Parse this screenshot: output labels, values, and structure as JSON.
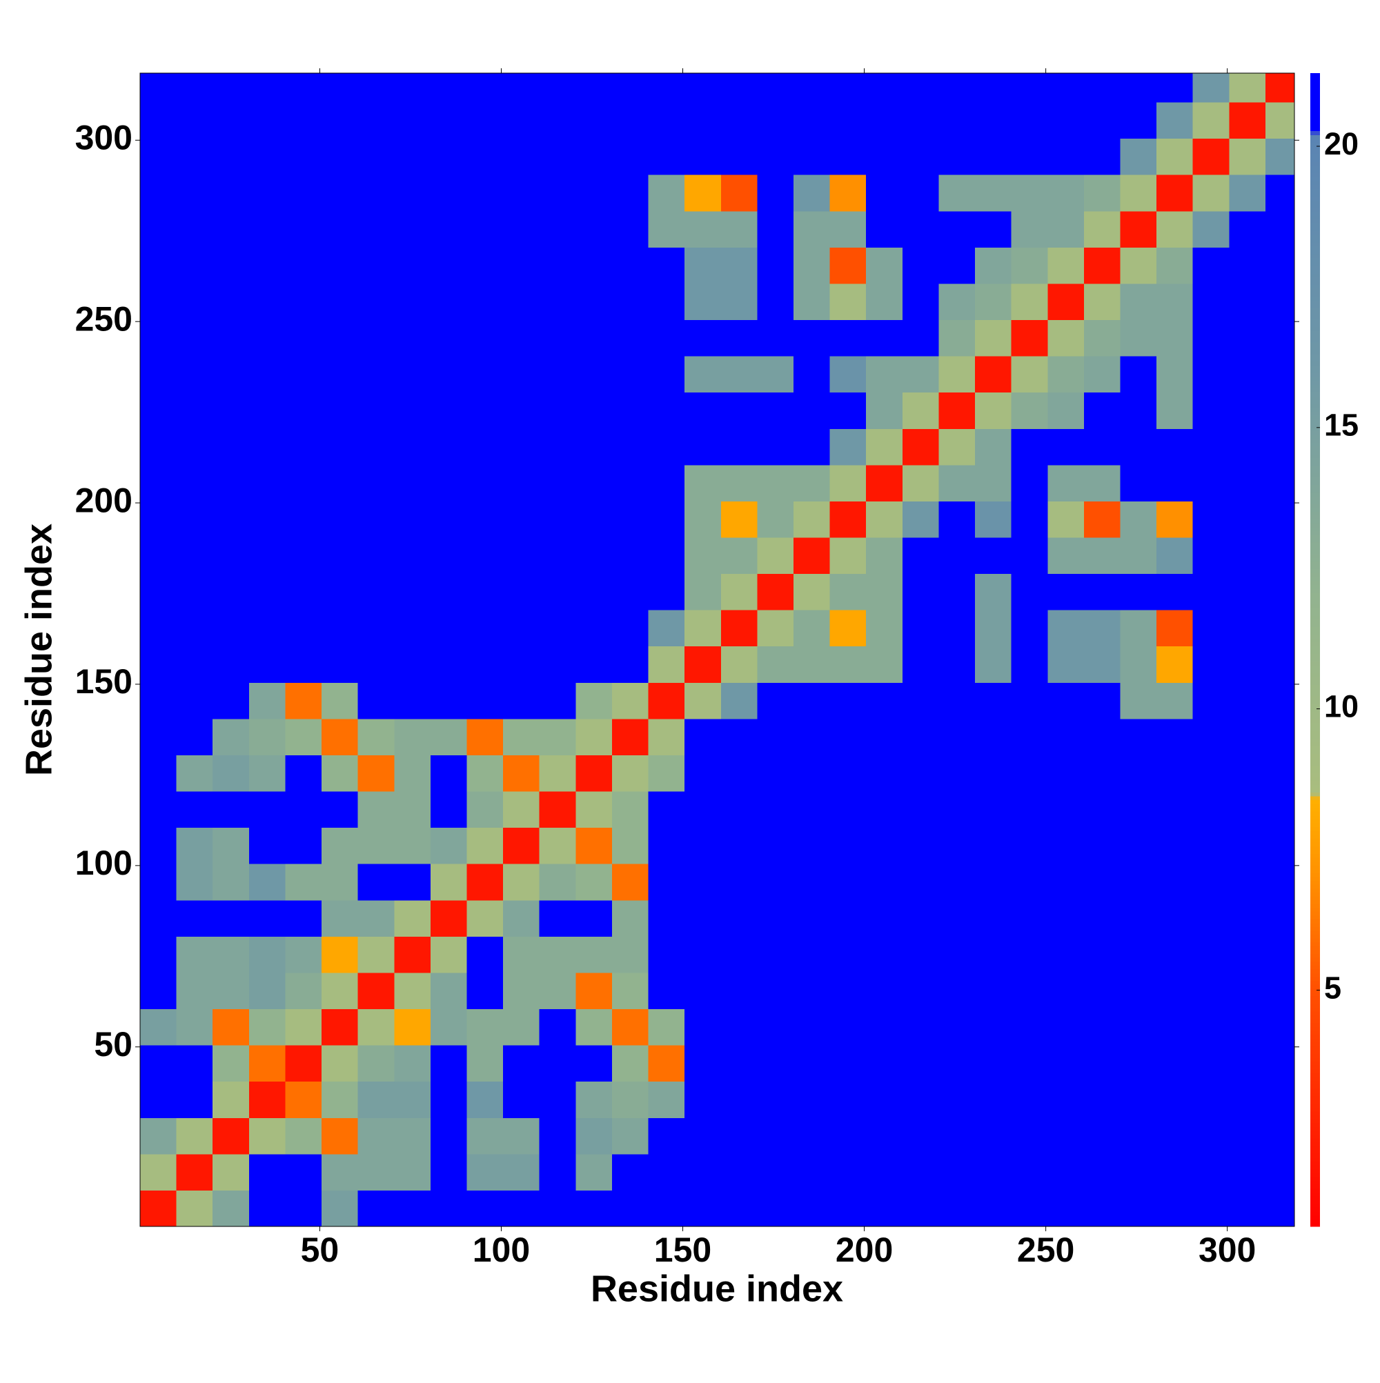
{
  "chart_data": {
    "type": "heatmap",
    "xlabel": "Residue index",
    "ylabel": "Residue index",
    "xlim": [
      0.5,
      318.5
    ],
    "ylim": [
      0.5,
      318.5
    ],
    "xticks": [
      50,
      100,
      150,
      200,
      250,
      300
    ],
    "yticks": [
      50,
      100,
      150,
      200,
      250,
      300
    ],
    "xbins": [
      0.5,
      10.5,
      20.5,
      30.5,
      40.5,
      50.5,
      60.5,
      70.5,
      80.5,
      90.5,
      100.5,
      110.5,
      120.5,
      130.5,
      140.5,
      150.5,
      160.5,
      170.5,
      180.5,
      190.5,
      200.5,
      210.5,
      220.5,
      230.5,
      240.5,
      250.5,
      260.5,
      270.5,
      280.5,
      290.5,
      300.5,
      310.5,
      318.5
    ],
    "ybins": [
      0.5,
      10.5,
      20.5,
      30.5,
      40.5,
      50.5,
      60.5,
      70.5,
      80.5,
      90.5,
      100.5,
      110.5,
      120.5,
      130.5,
      140.5,
      150.5,
      160.5,
      170.5,
      180.5,
      190.5,
      200.5,
      210.5,
      220.5,
      230.5,
      240.5,
      250.5,
      260.5,
      270.5,
      280.5,
      290.5,
      300.5,
      310.5,
      318.5
    ],
    "zlim": [
      0.8,
      21.3
    ],
    "zticks": [
      5,
      10,
      15,
      20
    ],
    "colorscale": [
      [
        0.8,
        "#ff0000"
      ],
      [
        5,
        "#ff5000"
      ],
      [
        7,
        "#ff9000"
      ],
      [
        8.4,
        "#ffb000"
      ],
      [
        8.5,
        "#a9bd7e"
      ],
      [
        12,
        "#92b38f"
      ],
      [
        16,
        "#6f98a6"
      ],
      [
        20.2,
        "#5a84b3"
      ],
      [
        20.3,
        "#0000ff"
      ],
      [
        21.3,
        "#0000ff"
      ]
    ],
    "z": [
      [
        2,
        9,
        14,
        21,
        21,
        15,
        21,
        21,
        21,
        21,
        21,
        21,
        21,
        21,
        21,
        21,
        21,
        21,
        21,
        21,
        21,
        21,
        21,
        21,
        21,
        21,
        21,
        21,
        21,
        21,
        21,
        21
      ],
      [
        9,
        2,
        9,
        21,
        21,
        14,
        14,
        14,
        21,
        15,
        15,
        21,
        14,
        21,
        21,
        21,
        21,
        21,
        21,
        21,
        21,
        21,
        21,
        21,
        21,
        21,
        21,
        21,
        21,
        21,
        21,
        21
      ],
      [
        14,
        9,
        2,
        9,
        12,
        6,
        14,
        14,
        21,
        14,
        14,
        21,
        15,
        14,
        21,
        21,
        21,
        21,
        21,
        21,
        21,
        21,
        21,
        21,
        21,
        21,
        21,
        21,
        21,
        21,
        21,
        21
      ],
      [
        21,
        21,
        9,
        2,
        6,
        12,
        15,
        15,
        21,
        16,
        21,
        21,
        14,
        13,
        14,
        21,
        21,
        21,
        21,
        21,
        21,
        21,
        21,
        21,
        21,
        21,
        21,
        21,
        21,
        21,
        21,
        21
      ],
      [
        21,
        21,
        12,
        6,
        2,
        9,
        13,
        14,
        21,
        13,
        21,
        21,
        21,
        12,
        6,
        21,
        21,
        21,
        21,
        21,
        21,
        21,
        21,
        21,
        21,
        21,
        21,
        21,
        21,
        21,
        21,
        21
      ],
      [
        15,
        14,
        6,
        12,
        9,
        2,
        9,
        8,
        14,
        13,
        13,
        21,
        12,
        6,
        12,
        21,
        21,
        21,
        21,
        21,
        21,
        21,
        21,
        21,
        21,
        21,
        21,
        21,
        21,
        21,
        21,
        21
      ],
      [
        21,
        14,
        14,
        15,
        13,
        9,
        2,
        9,
        14,
        21,
        13,
        13,
        6,
        12,
        21,
        21,
        21,
        21,
        21,
        21,
        21,
        21,
        21,
        21,
        21,
        21,
        21,
        21,
        21,
        21,
        21,
        21
      ],
      [
        21,
        14,
        14,
        15,
        14,
        8,
        9,
        2,
        9,
        21,
        13,
        13,
        13,
        13,
        21,
        21,
        21,
        21,
        21,
        21,
        21,
        21,
        21,
        21,
        21,
        21,
        21,
        21,
        21,
        21,
        21,
        21
      ],
      [
        21,
        21,
        21,
        21,
        21,
        14,
        14,
        9,
        2,
        9,
        14,
        21,
        21,
        13,
        21,
        21,
        21,
        21,
        21,
        21,
        21,
        21,
        21,
        21,
        21,
        21,
        21,
        21,
        21,
        21,
        21,
        21
      ],
      [
        21,
        15,
        14,
        16,
        13,
        13,
        21,
        21,
        9,
        2,
        9,
        13,
        12,
        6,
        21,
        21,
        21,
        21,
        21,
        21,
        21,
        21,
        21,
        21,
        21,
        21,
        21,
        21,
        21,
        21,
        21,
        21
      ],
      [
        21,
        15,
        14,
        21,
        21,
        13,
        13,
        13,
        14,
        9,
        2,
        9,
        6,
        12,
        21,
        21,
        21,
        21,
        21,
        21,
        21,
        21,
        21,
        21,
        21,
        21,
        21,
        21,
        21,
        21,
        21,
        21
      ],
      [
        21,
        21,
        21,
        21,
        21,
        21,
        13,
        13,
        21,
        13,
        9,
        2,
        9,
        12,
        21,
        21,
        21,
        21,
        21,
        21,
        21,
        21,
        21,
        21,
        21,
        21,
        21,
        21,
        21,
        21,
        21,
        21
      ],
      [
        21,
        14,
        15,
        14,
        21,
        12,
        6,
        13,
        21,
        12,
        6,
        9,
        2,
        9,
        12,
        21,
        21,
        21,
        21,
        21,
        21,
        21,
        21,
        21,
        21,
        21,
        21,
        21,
        21,
        21,
        21,
        21
      ],
      [
        21,
        21,
        14,
        13,
        12,
        6,
        12,
        13,
        13,
        6,
        12,
        12,
        9,
        2,
        9,
        21,
        21,
        21,
        21,
        21,
        21,
        21,
        21,
        21,
        21,
        21,
        21,
        21,
        21,
        21,
        21,
        21
      ],
      [
        21,
        21,
        21,
        14,
        6,
        12,
        21,
        21,
        21,
        21,
        21,
        21,
        12,
        9,
        2,
        9,
        16,
        21,
        21,
        21,
        21,
        21,
        21,
        21,
        21,
        21,
        21,
        14,
        14,
        21,
        21,
        21
      ],
      [
        21,
        21,
        21,
        21,
        21,
        21,
        21,
        21,
        21,
        21,
        21,
        21,
        21,
        21,
        9,
        2,
        9,
        13,
        13,
        13,
        13,
        21,
        21,
        15,
        21,
        16,
        16,
        14,
        8,
        21,
        21,
        21
      ],
      [
        21,
        21,
        21,
        21,
        21,
        21,
        21,
        21,
        21,
        21,
        21,
        21,
        21,
        21,
        16,
        9,
        2,
        9,
        13,
        8,
        13,
        21,
        21,
        15,
        21,
        16,
        16,
        14,
        5,
        21,
        21,
        21
      ],
      [
        21,
        21,
        21,
        21,
        21,
        21,
        21,
        21,
        21,
        21,
        21,
        21,
        21,
        21,
        21,
        13,
        9,
        2,
        9,
        13,
        13,
        21,
        21,
        15,
        21,
        21,
        21,
        21,
        21,
        21,
        21,
        21
      ],
      [
        21,
        21,
        21,
        21,
        21,
        21,
        21,
        21,
        21,
        21,
        21,
        21,
        21,
        21,
        21,
        13,
        13,
        9,
        2,
        9,
        13,
        21,
        21,
        21,
        21,
        14,
        14,
        14,
        16,
        21,
        21,
        21
      ],
      [
        21,
        21,
        21,
        21,
        21,
        21,
        21,
        21,
        21,
        21,
        21,
        21,
        21,
        21,
        21,
        13,
        8,
        13,
        9,
        2,
        9,
        16,
        21,
        17,
        21,
        9,
        5,
        14,
        7,
        21,
        21,
        21
      ],
      [
        21,
        21,
        21,
        21,
        21,
        21,
        21,
        21,
        21,
        21,
        21,
        21,
        21,
        21,
        21,
        13,
        13,
        13,
        13,
        9,
        2,
        9,
        14,
        14,
        21,
        14,
        14,
        21,
        21,
        21,
        21,
        21
      ],
      [
        21,
        21,
        21,
        21,
        21,
        21,
        21,
        21,
        21,
        21,
        21,
        21,
        21,
        21,
        21,
        21,
        21,
        21,
        21,
        16,
        9,
        2,
        9,
        14,
        21,
        21,
        21,
        21,
        21,
        21,
        21,
        21
      ],
      [
        21,
        21,
        21,
        21,
        21,
        21,
        21,
        21,
        21,
        21,
        21,
        21,
        21,
        21,
        21,
        21,
        21,
        21,
        21,
        21,
        14,
        9,
        2,
        9,
        13,
        14,
        21,
        21,
        14,
        21,
        21,
        21
      ],
      [
        21,
        21,
        21,
        21,
        21,
        21,
        21,
        21,
        21,
        21,
        21,
        21,
        21,
        21,
        21,
        15,
        15,
        15,
        21,
        17,
        14,
        14,
        9,
        2,
        9,
        13,
        14,
        21,
        14,
        21,
        21,
        21
      ],
      [
        21,
        21,
        21,
        21,
        21,
        21,
        21,
        21,
        21,
        21,
        21,
        21,
        21,
        21,
        21,
        21,
        21,
        21,
        21,
        21,
        21,
        21,
        13,
        9,
        2,
        9,
        13,
        14,
        14,
        21,
        21,
        21
      ],
      [
        21,
        21,
        21,
        21,
        21,
        21,
        21,
        21,
        21,
        21,
        21,
        21,
        21,
        21,
        21,
        16,
        16,
        21,
        14,
        9,
        14,
        21,
        14,
        13,
        9,
        2,
        9,
        14,
        14,
        21,
        21,
        21
      ],
      [
        21,
        21,
        21,
        21,
        21,
        21,
        21,
        21,
        21,
        21,
        21,
        21,
        21,
        21,
        21,
        16,
        16,
        21,
        14,
        5,
        14,
        21,
        21,
        14,
        13,
        9,
        2,
        9,
        13,
        21,
        21,
        21
      ],
      [
        21,
        21,
        21,
        21,
        21,
        21,
        21,
        21,
        21,
        21,
        21,
        21,
        21,
        21,
        14,
        14,
        14,
        21,
        14,
        14,
        21,
        21,
        21,
        21,
        14,
        14,
        9,
        2,
        9,
        16,
        21,
        21
      ],
      [
        21,
        21,
        21,
        21,
        21,
        21,
        21,
        21,
        21,
        21,
        21,
        21,
        21,
        21,
        14,
        8,
        5,
        21,
        16,
        7,
        21,
        21,
        14,
        14,
        14,
        14,
        13,
        9,
        2,
        9,
        16,
        21
      ],
      [
        21,
        21,
        21,
        21,
        21,
        21,
        21,
        21,
        21,
        21,
        21,
        21,
        21,
        21,
        21,
        21,
        21,
        21,
        21,
        21,
        21,
        21,
        21,
        21,
        21,
        21,
        21,
        16,
        9,
        2,
        9,
        16
      ],
      [
        21,
        21,
        21,
        21,
        21,
        21,
        21,
        21,
        21,
        21,
        21,
        21,
        21,
        21,
        21,
        21,
        21,
        21,
        21,
        21,
        21,
        21,
        21,
        21,
        21,
        21,
        21,
        21,
        16,
        9,
        2,
        9
      ],
      [
        21,
        21,
        21,
        21,
        21,
        21,
        21,
        21,
        21,
        21,
        21,
        21,
        21,
        21,
        21,
        21,
        21,
        21,
        21,
        21,
        21,
        21,
        21,
        21,
        21,
        21,
        21,
        21,
        21,
        16,
        9,
        2
      ]
    ]
  }
}
